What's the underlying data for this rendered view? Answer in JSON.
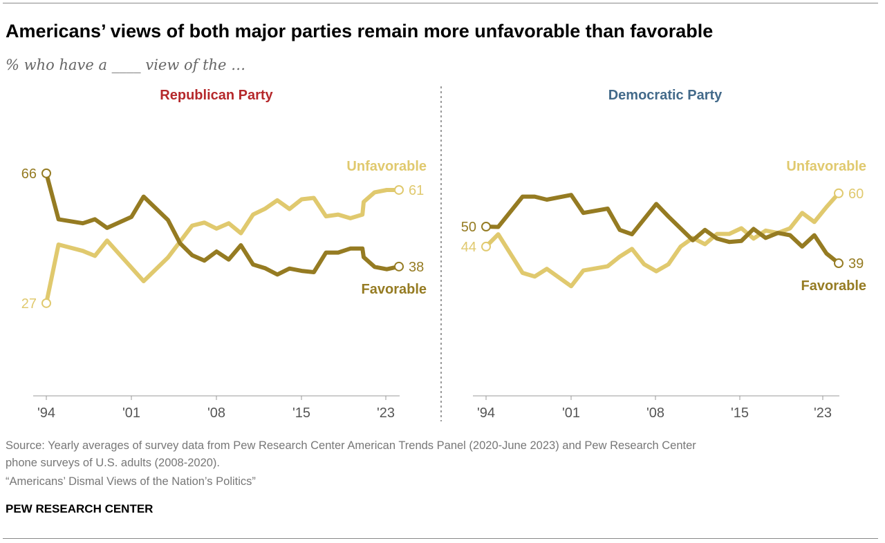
{
  "title": "Americans’ views of both major parties remain more unfavorable than favorable",
  "subtitle": "% who have a ____ view of the …",
  "source_lines": [
    "Source: Yearly averages of survey data from Pew Research Center American Trends Panel (2020-June 2023) and Pew Research Center",
    "phone surveys of U.S. adults (2008-2020).",
    "“Americans’ Dismal Views of the Nation’s Politics”"
  ],
  "logo": "PEW RESEARCH CENTER",
  "colors": {
    "favorable": "#957b22",
    "unfavorable": "#e0c96e",
    "republican": "#b5282b",
    "democratic": "#436a8a"
  },
  "chart_data": [
    {
      "type": "line",
      "title": "Republican Party",
      "x_tick_labels": [
        "'94",
        "'01",
        "'08",
        "'15",
        "'23"
      ],
      "xlim": [
        1994,
        2023
      ],
      "grid": false,
      "series": [
        {
          "name": "Unfavorable",
          "start_label": "27",
          "end_label": "61",
          "points": [
            [
              1994,
              27
            ],
            [
              1995,
              44.6
            ],
            [
              1997,
              42.7
            ],
            [
              1998,
              41.2
            ],
            [
              1999,
              45.8
            ],
            [
              2002,
              33.6
            ],
            [
              2004,
              40.7
            ],
            [
              2006,
              50.3
            ],
            [
              2007,
              51.2
            ],
            [
              2008,
              49.4
            ],
            [
              2009,
              51
            ],
            [
              2010,
              48
            ],
            [
              2011,
              53.6
            ],
            [
              2012,
              55.4
            ],
            [
              2013,
              57.9
            ],
            [
              2014,
              55.3
            ],
            [
              2015,
              58.2
            ],
            [
              2016,
              58.6
            ],
            [
              2017,
              53.1
            ],
            [
              2018,
              53.6
            ],
            [
              2019,
              52.5
            ],
            [
              2020,
              53.6
            ],
            [
              2020.1,
              57.4
            ],
            [
              2021,
              60.3
            ],
            [
              2022,
              61
            ],
            [
              2023,
              61
            ]
          ]
        },
        {
          "name": "Favorable",
          "start_label": "66",
          "end_label": "38",
          "points": [
            [
              1994,
              66
            ],
            [
              1995,
              52.2
            ],
            [
              1997,
              51
            ],
            [
              1998,
              52.2
            ],
            [
              1999,
              49.6
            ],
            [
              2001,
              52.9
            ],
            [
              2002,
              59
            ],
            [
              2004,
              52
            ],
            [
              2005,
              45
            ],
            [
              2006,
              41.4
            ],
            [
              2007,
              39.8
            ],
            [
              2008,
              42.5
            ],
            [
              2009,
              40.1
            ],
            [
              2010,
              44.4
            ],
            [
              2011,
              38.6
            ],
            [
              2012,
              37.5
            ],
            [
              2013,
              35.6
            ],
            [
              2014,
              37.4
            ],
            [
              2015,
              36.7
            ],
            [
              2016,
              36.3
            ],
            [
              2017,
              42.2
            ],
            [
              2018,
              42.2
            ],
            [
              2019,
              43.4
            ],
            [
              2020,
              43.4
            ],
            [
              2020.1,
              40.8
            ],
            [
              2021,
              37.9
            ],
            [
              2022,
              37.2
            ],
            [
              2023,
              38
            ]
          ]
        }
      ]
    },
    {
      "type": "line",
      "title": "Democratic Party",
      "x_tick_labels": [
        "'94",
        "'01",
        "'08",
        "'15",
        "'23"
      ],
      "xlim": [
        1994,
        2023
      ],
      "grid": false,
      "series": [
        {
          "name": "Unfavorable",
          "start_label": "44",
          "end_label": "60",
          "points": [
            [
              1994,
              44
            ],
            [
              1995,
              47.7
            ],
            [
              1997,
              36.1
            ],
            [
              1998,
              35
            ],
            [
              1999,
              37.3
            ],
            [
              2001,
              32.1
            ],
            [
              2002,
              36.8
            ],
            [
              2004,
              38.1
            ],
            [
              2005,
              41
            ],
            [
              2006,
              43.3
            ],
            [
              2007,
              38.7
            ],
            [
              2008,
              36.6
            ],
            [
              2009,
              38.7
            ],
            [
              2010,
              44
            ],
            [
              2011,
              46.6
            ],
            [
              2012,
              44.7
            ],
            [
              2013,
              47.8
            ],
            [
              2014,
              47.8
            ],
            [
              2015,
              49.5
            ],
            [
              2016,
              46.4
            ],
            [
              2017,
              48.8
            ],
            [
              2018,
              48.1
            ],
            [
              2019,
              49.5
            ],
            [
              2020,
              54.1
            ],
            [
              2021,
              51.4
            ],
            [
              2022,
              55.9
            ],
            [
              2023,
              60
            ]
          ]
        },
        {
          "name": "Favorable",
          "start_label": "50",
          "end_label": "39",
          "points": [
            [
              1994,
              50
            ],
            [
              1995,
              49.9
            ],
            [
              1997,
              59
            ],
            [
              1998,
              59
            ],
            [
              1999,
              58.1
            ],
            [
              2001,
              59.5
            ],
            [
              2002,
              54.1
            ],
            [
              2004,
              55.4
            ],
            [
              2005,
              49
            ],
            [
              2006,
              47.7
            ],
            [
              2008,
              56.8
            ],
            [
              2009,
              53
            ],
            [
              2011,
              45.9
            ],
            [
              2012,
              49
            ],
            [
              2013,
              46.4
            ],
            [
              2014,
              45.4
            ],
            [
              2015,
              45.7
            ],
            [
              2016,
              49.3
            ],
            [
              2017,
              46.6
            ],
            [
              2018,
              48.1
            ],
            [
              2019,
              47.4
            ],
            [
              2020,
              44
            ],
            [
              2021,
              47.4
            ],
            [
              2022,
              41.9
            ],
            [
              2023,
              39
            ]
          ]
        }
      ]
    }
  ]
}
